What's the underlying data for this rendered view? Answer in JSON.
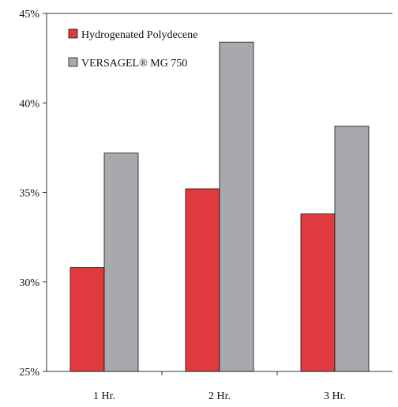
{
  "chart_data": {
    "type": "bar",
    "categories": [
      "1 Hr.",
      "2 Hr.",
      "3 Hr."
    ],
    "series": [
      {
        "name": "Hydrogenated Polydecene",
        "values": [
          30.8,
          35.2,
          33.8
        ],
        "color": "#e03a3e"
      },
      {
        "name": "VERSAGEL® MG 750",
        "values": [
          37.2,
          43.4,
          38.7
        ],
        "color": "#a7a9ac"
      }
    ],
    "ylim": [
      25,
      45
    ],
    "yticks": [
      "25%",
      "30%",
      "35%",
      "40%",
      "45%"
    ],
    "ytick_values": [
      25,
      30,
      35,
      40,
      45
    ],
    "legend_position": "top-left",
    "grid": false,
    "title": "",
    "xlabel": "",
    "ylabel": ""
  }
}
